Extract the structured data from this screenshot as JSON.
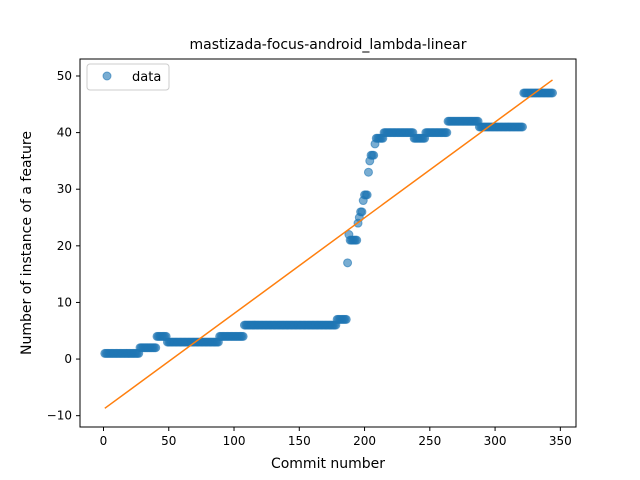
{
  "chart_data": {
    "type": "scatter",
    "title": "mastizada-focus-android_lambda-linear",
    "xlabel": "Commit number",
    "ylabel": "Number of instance of a feature",
    "xlim": [
      -18,
      362
    ],
    "ylim": [
      -12,
      53
    ],
    "xticks": [
      0,
      50,
      100,
      150,
      200,
      250,
      300,
      350
    ],
    "yticks": [
      -10,
      0,
      10,
      20,
      30,
      40,
      50
    ],
    "legend": {
      "position": "top-left",
      "entries": [
        "data"
      ]
    },
    "colors": {
      "data": "#1f77b4",
      "fit": "#ff7f0e"
    },
    "series": [
      {
        "name": "data",
        "kind": "points",
        "segments": [
          {
            "x_start": 1,
            "x_end": 27,
            "y": 1
          },
          {
            "x_start": 28,
            "x_end": 40,
            "y": 2
          },
          {
            "x_start": 41,
            "x_end": 48,
            "y": 4
          },
          {
            "x_start": 49,
            "x_end": 88,
            "y": 3
          },
          {
            "x_start": 89,
            "x_end": 107,
            "y": 4
          },
          {
            "x_start": 108,
            "x_end": 178,
            "y": 6
          },
          {
            "x_start": 179,
            "x_end": 186,
            "y": 7
          }
        ],
        "points": [
          [
            187,
            17
          ],
          [
            188,
            22
          ],
          [
            189,
            21
          ],
          [
            190,
            21
          ],
          [
            191,
            21
          ],
          [
            192,
            21
          ],
          [
            193,
            21
          ],
          [
            194,
            21
          ],
          [
            195,
            24
          ],
          [
            196,
            25
          ],
          [
            197,
            26
          ],
          [
            198,
            26
          ],
          [
            199,
            28
          ],
          [
            200,
            29
          ],
          [
            201,
            29
          ],
          [
            202,
            29
          ],
          [
            203,
            33
          ],
          [
            204,
            35
          ],
          [
            205,
            36
          ],
          [
            206,
            36
          ],
          [
            207,
            36
          ],
          [
            208,
            38
          ],
          [
            209,
            39
          ],
          [
            210,
            39
          ],
          [
            211,
            39
          ],
          [
            212,
            39
          ],
          [
            213,
            39
          ],
          [
            214,
            39
          ]
        ],
        "segments_after": [
          {
            "x_start": 215,
            "x_end": 237,
            "y": 40
          },
          {
            "x_start": 238,
            "x_end": 246,
            "y": 39
          },
          {
            "x_start": 247,
            "x_end": 263,
            "y": 40
          },
          {
            "x_start": 264,
            "x_end": 287,
            "y": 42
          },
          {
            "x_start": 288,
            "x_end": 321,
            "y": 41
          },
          {
            "x_start": 322,
            "x_end": 344,
            "y": 47
          }
        ]
      },
      {
        "name": "",
        "kind": "line",
        "x": [
          1,
          344
        ],
        "y": [
          -8.7,
          49.3
        ]
      }
    ]
  }
}
